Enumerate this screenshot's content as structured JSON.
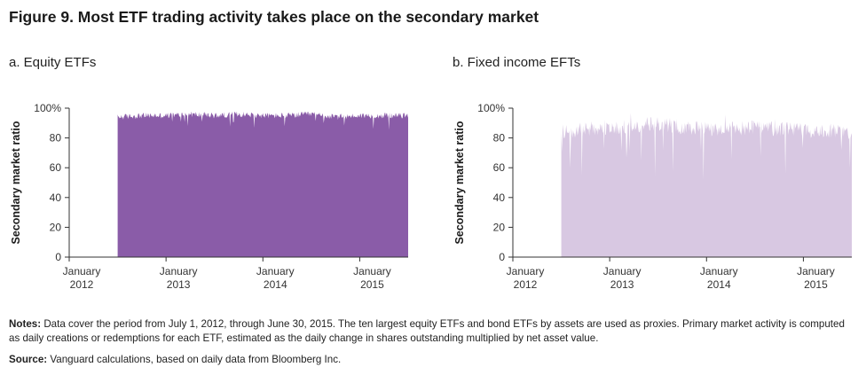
{
  "figure_title": "Figure 9. Most ETF trading activity takes place on the secondary market",
  "notes_label": "Notes:",
  "notes_text": "Data cover the period from July 1, 2012, through June 30, 2015. The ten largest equity ETFs and bond ETFs by assets are used as proxies. Primary market activity is computed as daily creations or redemptions for each ETF, estimated as the daily change in shares outstanding multiplied by net asset value.",
  "source_label": "Source:",
  "source_text": "Vanguard calculations, based on daily data from Bloomberg Inc.",
  "chart_data": [
    {
      "type": "area",
      "panel_title": "a. Equity ETFs",
      "ylabel": "Secondary market ratio",
      "xlabel": "",
      "ylim": [
        0,
        100
      ],
      "y_ticks": [
        "0",
        "20",
        "40",
        "60",
        "80",
        "100%"
      ],
      "x_ticks": [
        {
          "line1": "January",
          "line2": "2012"
        },
        {
          "line1": "January",
          "line2": "2013"
        },
        {
          "line1": "January",
          "line2": "2014"
        },
        {
          "line1": "January",
          "line2": "2015"
        }
      ],
      "x_range": [
        "2012-07-01",
        "2015-06-30"
      ],
      "color": "#8a5ca8",
      "series": [
        {
          "x": [
            "2012-07",
            "2012-10",
            "2013-01",
            "2013-04",
            "2013-07",
            "2013-10",
            "2014-01",
            "2014-04",
            "2014-07",
            "2014-10",
            "2015-01",
            "2015-04",
            "2015-06"
          ],
          "values": [
            94,
            95,
            95,
            96,
            95,
            96,
            95,
            95,
            96,
            94,
            95,
            95,
            95
          ],
          "daily_range": [
            85,
            98
          ]
        }
      ],
      "grid": false
    },
    {
      "type": "area",
      "panel_title": "b. Fixed income EFTs",
      "ylabel": "Secondary market ratio",
      "xlabel": "",
      "ylim": [
        0,
        100
      ],
      "y_ticks": [
        "0",
        "20",
        "40",
        "60",
        "80",
        "100%"
      ],
      "x_ticks": [
        {
          "line1": "January",
          "line2": "2012"
        },
        {
          "line1": "January",
          "line2": "2013"
        },
        {
          "line1": "January",
          "line2": "2014"
        },
        {
          "line1": "January",
          "line2": "2015"
        }
      ],
      "x_range": [
        "2012-07-01",
        "2015-06-30"
      ],
      "color": "#d8c8e2",
      "series": [
        {
          "x": [
            "2012-07",
            "2012-10",
            "2013-01",
            "2013-04",
            "2013-07",
            "2013-10",
            "2014-01",
            "2014-04",
            "2014-07",
            "2014-10",
            "2015-01",
            "2015-04",
            "2015-06"
          ],
          "values": [
            84,
            86,
            87,
            88,
            90,
            87,
            86,
            86,
            87,
            86,
            85,
            85,
            84
          ],
          "daily_range": [
            52,
            98
          ]
        }
      ],
      "grid": false
    }
  ]
}
